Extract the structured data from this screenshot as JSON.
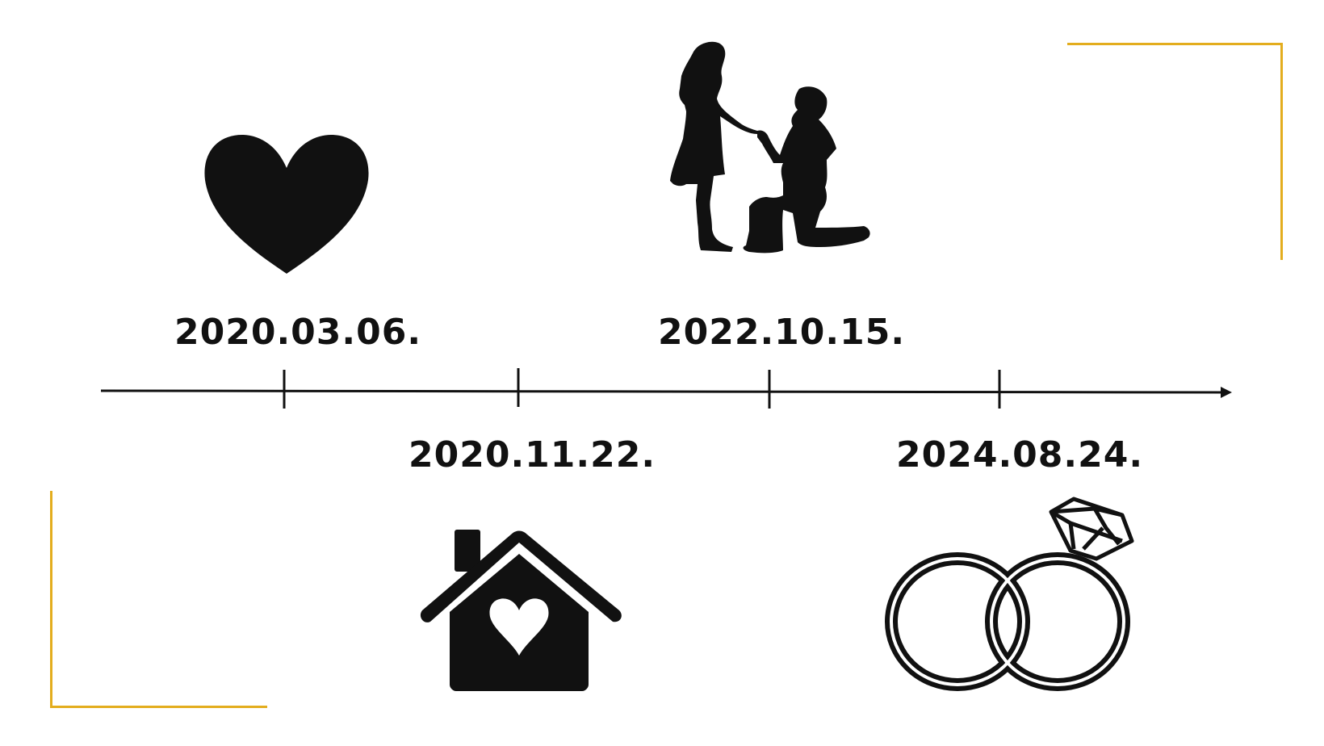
{
  "timeline": {
    "accent_color": "#e3ad1e",
    "events": [
      {
        "date": "2020.03.06.",
        "icon": "heart-icon"
      },
      {
        "date": "2020.11.22.",
        "icon": "house-heart-icon"
      },
      {
        "date": "2022.10.15.",
        "icon": "proposal-couple-icon"
      },
      {
        "date": "2024.08.24.",
        "icon": "wedding-rings-icon"
      }
    ]
  }
}
